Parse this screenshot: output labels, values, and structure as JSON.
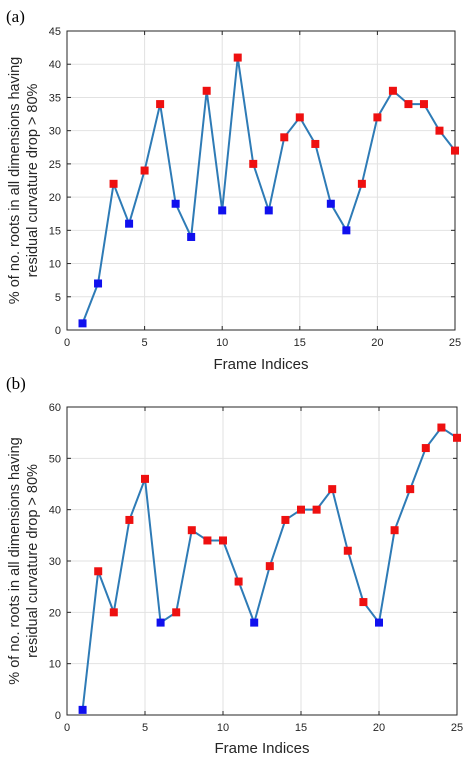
{
  "chart_data": [
    {
      "panel_label": "(a)",
      "type": "line",
      "x": [
        1,
        2,
        3,
        4,
        5,
        6,
        7,
        8,
        9,
        10,
        11,
        12,
        13,
        14,
        15,
        16,
        17,
        18,
        19,
        20,
        21,
        22,
        23,
        24,
        25
      ],
      "y": [
        1,
        7,
        22,
        16,
        24,
        34,
        19,
        14,
        36,
        18,
        41,
        25,
        18,
        29,
        32,
        28,
        19,
        15,
        22,
        32,
        36,
        34,
        34,
        30,
        27
      ],
      "marker_colors": [
        "#1010ee",
        "#1010ee",
        "#ee1010",
        "#1010ee",
        "#ee1010",
        "#ee1010",
        "#1010ee",
        "#1010ee",
        "#ee1010",
        "#1010ee",
        "#ee1010",
        "#ee1010",
        "#1010ee",
        "#ee1010",
        "#ee1010",
        "#ee1010",
        "#1010ee",
        "#1010ee",
        "#ee1010",
        "#ee1010",
        "#ee1010",
        "#ee1010",
        "#ee1010",
        "#ee1010",
        "#ee1010"
      ],
      "xlabel": "Frame Indices",
      "ylabel_lines": [
        "% of no. roots in all dimensions having",
        "residual curvature drop > 80%"
      ],
      "xlim": [
        0,
        25
      ],
      "ylim": [
        0,
        45
      ],
      "xticks": [
        0,
        5,
        10,
        15,
        20,
        25
      ],
      "yticks": [
        0,
        5,
        10,
        15,
        20,
        25,
        30,
        35,
        40,
        45
      ],
      "grid": true
    },
    {
      "panel_label": "(b)",
      "type": "line",
      "x": [
        1,
        2,
        3,
        4,
        5,
        6,
        7,
        8,
        9,
        10,
        11,
        12,
        13,
        14,
        15,
        16,
        17,
        18,
        19,
        20,
        21,
        22,
        23,
        24,
        25
      ],
      "y": [
        1,
        28,
        20,
        38,
        46,
        18,
        20,
        36,
        34,
        34,
        26,
        18,
        29,
        38,
        40,
        40,
        44,
        32,
        22,
        18,
        36,
        44,
        52,
        56,
        54
      ],
      "marker_colors": [
        "#1010ee",
        "#ee1010",
        "#ee1010",
        "#ee1010",
        "#ee1010",
        "#1010ee",
        "#ee1010",
        "#ee1010",
        "#ee1010",
        "#ee1010",
        "#ee1010",
        "#1010ee",
        "#ee1010",
        "#ee1010",
        "#ee1010",
        "#ee1010",
        "#ee1010",
        "#ee1010",
        "#ee1010",
        "#1010ee",
        "#ee1010",
        "#ee1010",
        "#ee1010",
        "#ee1010",
        "#ee1010"
      ],
      "xlabel": "Frame Indices",
      "ylabel_lines": [
        "% of no. roots in all dimensions having",
        "residual curvature drop > 80%"
      ],
      "xlim": [
        0,
        25
      ],
      "ylim": [
        0,
        60
      ],
      "xticks": [
        0,
        5,
        10,
        15,
        20,
        25
      ],
      "yticks": [
        0,
        10,
        20,
        30,
        40,
        50,
        60
      ],
      "grid": true
    }
  ],
  "colors": {
    "line": "#2e7bb6",
    "grid": "#e2e2e2",
    "axis": "#262626",
    "high_marker": "#ee1010",
    "low_marker": "#1010ee"
  }
}
